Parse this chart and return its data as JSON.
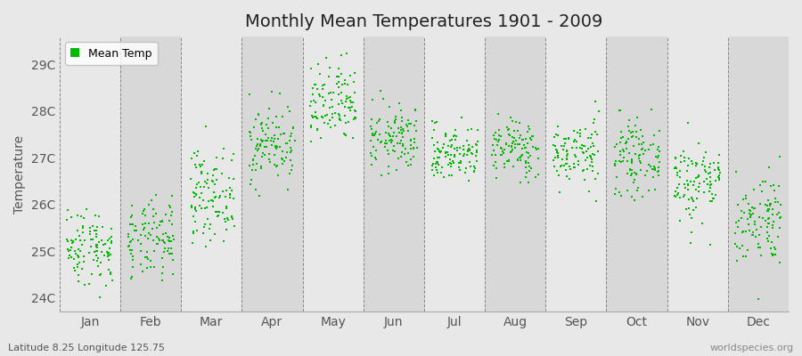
{
  "title": "Monthly Mean Temperatures 1901 - 2009",
  "ylabel": "Temperature",
  "latitude_label": "Latitude 8.25 Longitude 125.75",
  "watermark": "worldspecies.org",
  "legend_label": "Mean Temp",
  "dot_color": "#00bb00",
  "dot_size": 3,
  "ylim": [
    23.7,
    29.6
  ],
  "yticks": [
    24,
    25,
    26,
    27,
    28,
    29
  ],
  "ytick_labels": [
    "24C",
    "25C",
    "26C",
    "27C",
    "28C",
    "29C"
  ],
  "months": [
    "Jan",
    "Feb",
    "Mar",
    "Apr",
    "May",
    "Jun",
    "Jul",
    "Aug",
    "Sep",
    "Oct",
    "Nov",
    "Dec"
  ],
  "month_means": [
    25.1,
    25.2,
    26.2,
    27.3,
    28.1,
    27.4,
    27.1,
    27.2,
    27.1,
    27.0,
    26.5,
    25.7
  ],
  "month_stds": [
    0.42,
    0.42,
    0.48,
    0.42,
    0.45,
    0.35,
    0.3,
    0.32,
    0.35,
    0.38,
    0.45,
    0.5
  ],
  "background_color": "#e8e8e8",
  "plot_bg_light": "#e8e8e8",
  "plot_bg_dark": "#d8d8d8",
  "n_years": 109,
  "start_year": 1901,
  "end_year": 2009,
  "title_fontsize": 14,
  "label_fontsize": 10,
  "ylabel_fontsize": 10
}
